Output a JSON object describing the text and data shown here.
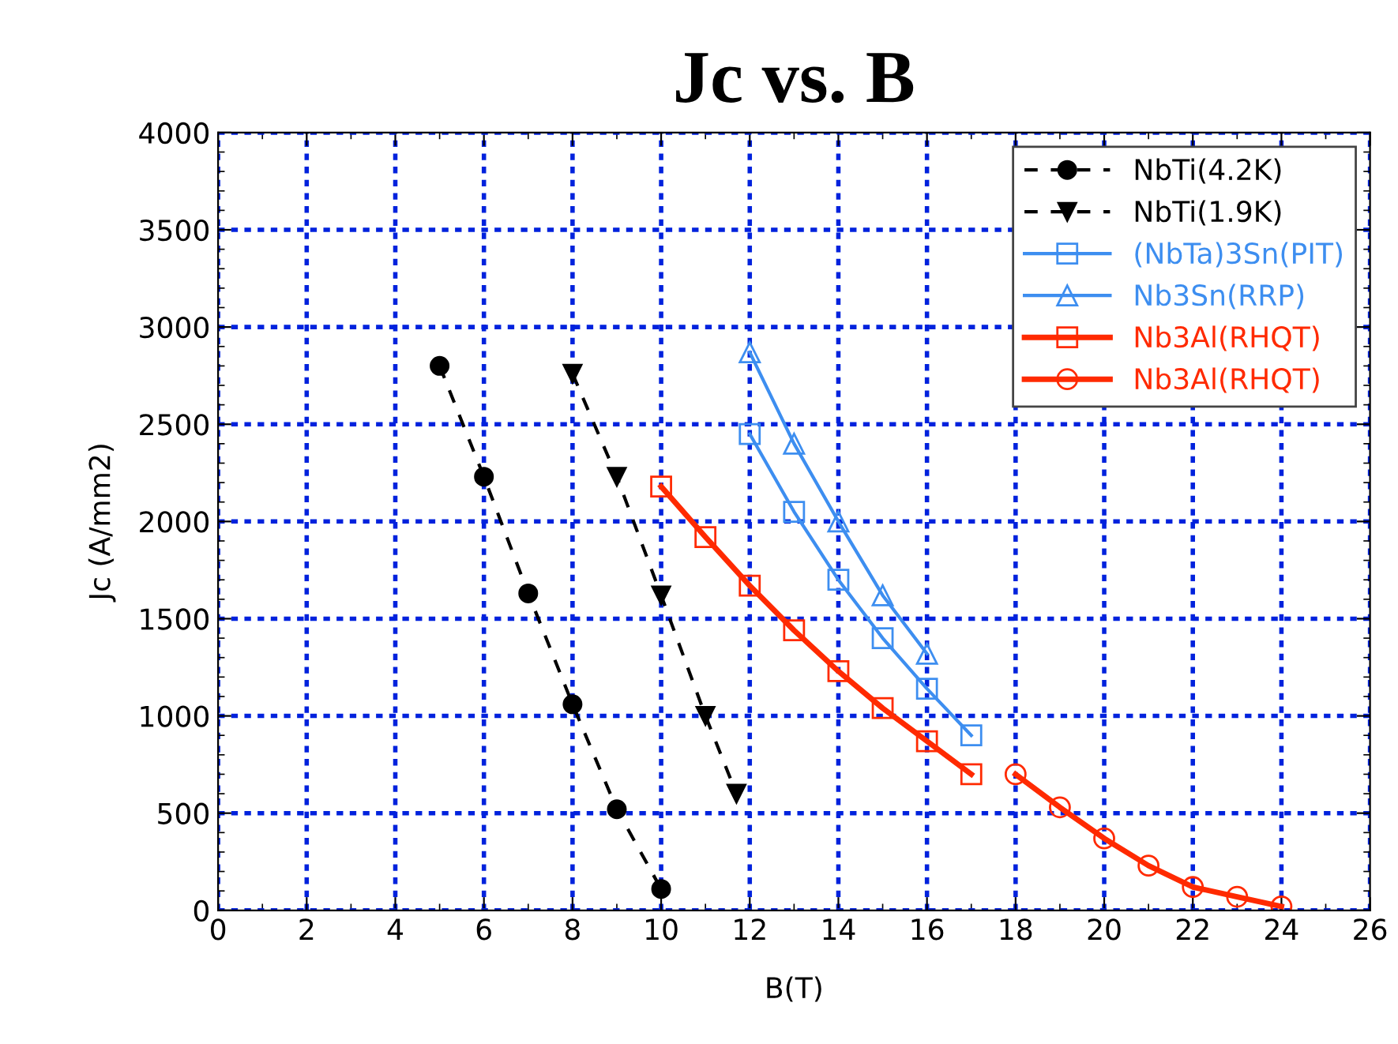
{
  "chart_data": {
    "type": "line",
    "title": "Jc vs. B",
    "xlabel": "B(T)",
    "ylabel": "Jc (A/mm2)",
    "xlim": [
      0,
      26
    ],
    "xticks": [
      0,
      2,
      4,
      6,
      8,
      10,
      12,
      14,
      16,
      18,
      20,
      22,
      24,
      26
    ],
    "ylim": [
      0,
      4000
    ],
    "yticks": [
      0,
      500,
      1000,
      1500,
      2000,
      2500,
      3000,
      3500,
      4000
    ],
    "grid": true,
    "legend": "top right",
    "series": [
      {
        "name": "NbTi(4.2K)",
        "color": "#000000",
        "marker": "circle",
        "line_style": "dashed",
        "x": [
          5,
          6,
          7,
          8,
          9,
          10
        ],
        "values": [
          2800,
          2230,
          1630,
          1060,
          520,
          110
        ]
      },
      {
        "name": "NbTi(1.9K)",
        "color": "#000000",
        "marker": "triangle_down",
        "line_style": "dashed",
        "x": [
          8,
          9,
          10,
          11,
          11.7
        ],
        "values": [
          2760,
          2230,
          1620,
          1000,
          600
        ]
      },
      {
        "name": "(NbTa)3Sn(PIT)",
        "color": "#3d8ef0",
        "marker": "square",
        "line_style": "solid",
        "x": [
          12,
          13,
          14,
          15,
          16,
          17
        ],
        "values": [
          2450,
          2050,
          1700,
          1400,
          1140,
          900
        ]
      },
      {
        "name": "Nb3Sn(RRP)",
        "color": "#3d8ef0",
        "marker": "triangle",
        "line_style": "solid",
        "x": [
          12,
          13,
          14,
          15,
          16
        ],
        "values": [
          2870,
          2400,
          2000,
          1620,
          1320
        ]
      },
      {
        "name": "Nb3Al(RHQT)",
        "color": "#ff2a00",
        "marker": "square",
        "line_style": "solid",
        "x": [
          10,
          11,
          12,
          13,
          14,
          15,
          16,
          17
        ],
        "values": [
          2180,
          1920,
          1670,
          1440,
          1230,
          1040,
          870,
          700
        ]
      },
      {
        "name": "Nb3Al(RHQT)",
        "color": "#ff2a00",
        "marker": "circle",
        "line_style": "solid",
        "x": [
          18,
          19,
          20,
          21,
          22,
          23,
          24
        ],
        "values": [
          700,
          530,
          370,
          230,
          120,
          70,
          20
        ]
      }
    ]
  }
}
